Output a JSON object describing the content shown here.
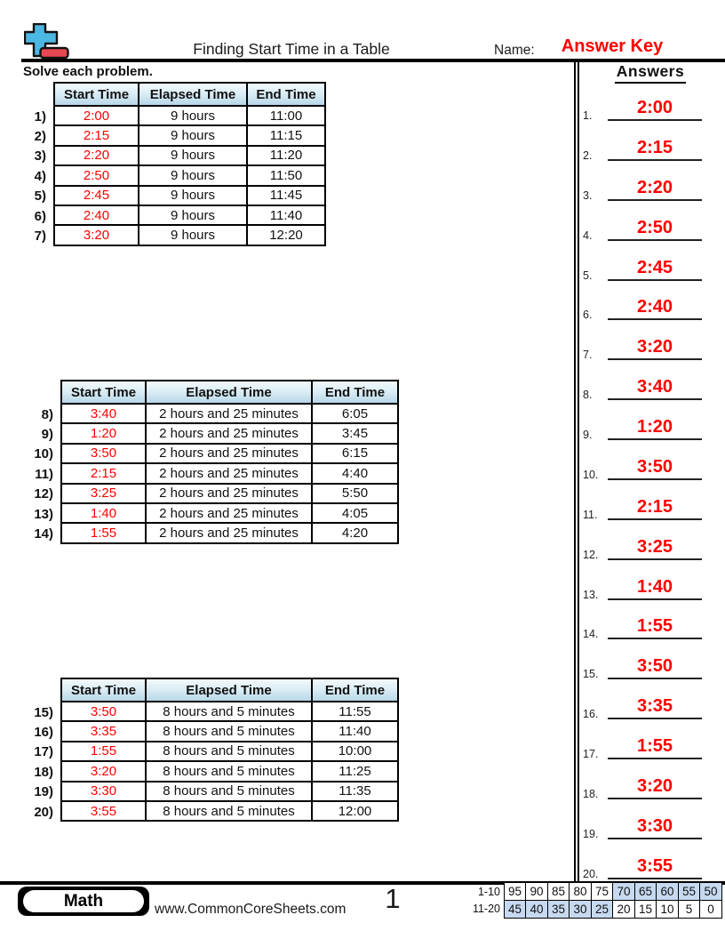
{
  "colors": {
    "red": "#ff0000",
    "header_top": "#f2f9fc",
    "header_mid": "#d9ecf5",
    "header_bot": "#b7d7e9",
    "highlight_blue": "#c6d9f0",
    "logo_blue": "#4db7e3",
    "logo_red": "#e84850"
  },
  "header": {
    "title": "Finding Start Time in a Table",
    "name_label": "Name:",
    "name_value": "Answer Key"
  },
  "instructions": "Solve each problem.",
  "tables": [
    {
      "headers": [
        "Start Time",
        "Elapsed Time",
        "End Time"
      ],
      "rows": [
        {
          "num": "1)",
          "start": "2:00",
          "elapsed": "9 hours",
          "end": "11:00"
        },
        {
          "num": "2)",
          "start": "2:15",
          "elapsed": "9 hours",
          "end": "11:15"
        },
        {
          "num": "3)",
          "start": "2:20",
          "elapsed": "9 hours",
          "end": "11:20"
        },
        {
          "num": "4)",
          "start": "2:50",
          "elapsed": "9 hours",
          "end": "11:50"
        },
        {
          "num": "5)",
          "start": "2:45",
          "elapsed": "9 hours",
          "end": "11:45"
        },
        {
          "num": "6)",
          "start": "2:40",
          "elapsed": "9 hours",
          "end": "11:40"
        },
        {
          "num": "7)",
          "start": "3:20",
          "elapsed": "9 hours",
          "end": "12:20"
        }
      ]
    },
    {
      "headers": [
        "Start Time",
        "Elapsed Time",
        "End Time"
      ],
      "rows": [
        {
          "num": "8)",
          "start": "3:40",
          "elapsed": "2 hours and 25 minutes",
          "end": "6:05"
        },
        {
          "num": "9)",
          "start": "1:20",
          "elapsed": "2 hours and 25 minutes",
          "end": "3:45"
        },
        {
          "num": "10)",
          "start": "3:50",
          "elapsed": "2 hours and 25 minutes",
          "end": "6:15"
        },
        {
          "num": "11)",
          "start": "2:15",
          "elapsed": "2 hours and 25 minutes",
          "end": "4:40"
        },
        {
          "num": "12)",
          "start": "3:25",
          "elapsed": "2 hours and 25 minutes",
          "end": "5:50"
        },
        {
          "num": "13)",
          "start": "1:40",
          "elapsed": "2 hours and 25 minutes",
          "end": "4:05"
        },
        {
          "num": "14)",
          "start": "1:55",
          "elapsed": "2 hours and 25 minutes",
          "end": "4:20"
        }
      ]
    },
    {
      "headers": [
        "Start Time",
        "Elapsed Time",
        "End Time"
      ],
      "rows": [
        {
          "num": "15)",
          "start": "3:50",
          "elapsed": "8 hours and 5 minutes",
          "end": "11:55"
        },
        {
          "num": "16)",
          "start": "3:35",
          "elapsed": "8 hours and 5 minutes",
          "end": "11:40"
        },
        {
          "num": "17)",
          "start": "1:55",
          "elapsed": "8 hours and 5 minutes",
          "end": "10:00"
        },
        {
          "num": "18)",
          "start": "3:20",
          "elapsed": "8 hours and 5 minutes",
          "end": "11:25"
        },
        {
          "num": "19)",
          "start": "3:30",
          "elapsed": "8 hours and 5 minutes",
          "end": "11:35"
        },
        {
          "num": "20)",
          "start": "3:55",
          "elapsed": "8 hours and 5 minutes",
          "end": "12:00"
        }
      ]
    }
  ],
  "answers_panel": {
    "title": "Answers",
    "items": [
      {
        "num": "1.",
        "value": "2:00"
      },
      {
        "num": "2.",
        "value": "2:15"
      },
      {
        "num": "3.",
        "value": "2:20"
      },
      {
        "num": "4.",
        "value": "2:50"
      },
      {
        "num": "5.",
        "value": "2:45"
      },
      {
        "num": "6.",
        "value": "2:40"
      },
      {
        "num": "7.",
        "value": "3:20"
      },
      {
        "num": "8.",
        "value": "3:40"
      },
      {
        "num": "9.",
        "value": "1:20"
      },
      {
        "num": "10.",
        "value": "3:50"
      },
      {
        "num": "11.",
        "value": "2:15"
      },
      {
        "num": "12.",
        "value": "3:25"
      },
      {
        "num": "13.",
        "value": "1:40"
      },
      {
        "num": "14.",
        "value": "1:55"
      },
      {
        "num": "15.",
        "value": "3:50"
      },
      {
        "num": "16.",
        "value": "3:35"
      },
      {
        "num": "17.",
        "value": "1:55"
      },
      {
        "num": "18.",
        "value": "3:20"
      },
      {
        "num": "19.",
        "value": "3:30"
      },
      {
        "num": "20.",
        "value": "3:55"
      }
    ]
  },
  "footer": {
    "subject": "Math",
    "website": "www.CommonCoreSheets.com",
    "page": "1",
    "score_rows": [
      {
        "label": "1-10",
        "cells": [
          {
            "v": "95",
            "hl": false
          },
          {
            "v": "90",
            "hl": false
          },
          {
            "v": "85",
            "hl": false
          },
          {
            "v": "80",
            "hl": false
          },
          {
            "v": "75",
            "hl": false
          },
          {
            "v": "70",
            "hl": true
          },
          {
            "v": "65",
            "hl": true
          },
          {
            "v": "60",
            "hl": true
          },
          {
            "v": "55",
            "hl": true
          },
          {
            "v": "50",
            "hl": true
          }
        ]
      },
      {
        "label": "11-20",
        "cells": [
          {
            "v": "45",
            "hl": true
          },
          {
            "v": "40",
            "hl": true
          },
          {
            "v": "35",
            "hl": true
          },
          {
            "v": "30",
            "hl": true
          },
          {
            "v": "25",
            "hl": true
          },
          {
            "v": "20",
            "hl": false
          },
          {
            "v": "15",
            "hl": false
          },
          {
            "v": "10",
            "hl": false
          },
          {
            "v": "5",
            "hl": false
          },
          {
            "v": "0",
            "hl": false
          }
        ]
      }
    ]
  }
}
